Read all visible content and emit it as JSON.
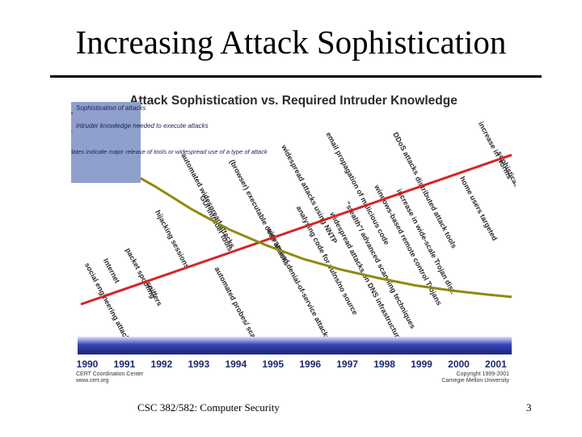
{
  "slide": {
    "title": "Increasing Attack Sophistication",
    "footer_course": "CSC 382/582: Computer Security",
    "page_number": "3"
  },
  "colors": {
    "sophistication_line": "#d42525",
    "knowledge_line": "#8f8a0e",
    "timeline_bar": "#3845b8",
    "legend_bg": "#8fa0cc",
    "legend_text": "#1a1f5c"
  },
  "chart_data": {
    "type": "line",
    "title": "Attack Sophistication vs. Required Intruder Knowledge",
    "xlabel": "",
    "ylabel": "",
    "xlim": [
      1990,
      2001.6
    ],
    "ylim": [
      0,
      10
    ],
    "x_ticks": [
      "1990",
      "1991",
      "1992",
      "1993",
      "1994",
      "1995",
      "1996",
      "1997",
      "1998",
      "1999",
      "2000",
      "2001"
    ],
    "legend": {
      "placement": "top-left",
      "entries": [
        "Sophistication of attacks",
        "Intruder knowledge needed to execute attacks"
      ],
      "note": "dates indicate major release of tools or widespread use of a type of attack"
    },
    "series": [
      {
        "name": "Sophistication of attacks",
        "color": "#d42525",
        "x": [
          1990,
          2001.6
        ],
        "y": [
          1.0,
          8.1
        ]
      },
      {
        "name": "Intruder knowledge needed to execute attacks",
        "color": "#8f8a0e",
        "x": [
          1990,
          1991,
          1992,
          1993,
          1994,
          1995,
          1996,
          1997,
          1998,
          1999,
          2000,
          2001,
          2001.6
        ],
        "y": [
          8.6,
          7.6,
          6.6,
          5.5,
          4.55,
          3.8,
          3.15,
          2.65,
          2.25,
          1.9,
          1.65,
          1.45,
          1.35
        ]
      }
    ],
    "annotations": [
      {
        "text": "social engineering attacks",
        "x": 1990.1,
        "y": 2.9,
        "angle": 62
      },
      {
        "text": "Internet",
        "x": 1990.6,
        "y": 3.1,
        "angle": 62
      },
      {
        "text": "packet spoofing",
        "x": 1991.2,
        "y": 3.6,
        "angle": 62
      },
      {
        "text": "sniffers",
        "x": 1991.75,
        "y": 2.0,
        "angle": 62
      },
      {
        "text": "hijacking sessions",
        "x": 1992.0,
        "y": 5.4,
        "angle": 62
      },
      {
        "text": "GUI intruder tools",
        "x": 1993.2,
        "y": 6.1,
        "angle": 62
      },
      {
        "text": "automated probes/ scans",
        "x": 1993.6,
        "y": 2.7,
        "angle": 62
      },
      {
        "text": "automated widespread attacks",
        "x": 1992.7,
        "y": 8.1,
        "angle": 62
      },
      {
        "text": "(browser) executable code attacks",
        "x": 1994.0,
        "y": 7.8,
        "angle": 62
      },
      {
        "text": "widespread attacks using NNTP",
        "x": 1995.4,
        "y": 8.5,
        "angle": 62
      },
      {
        "text": "email propagation of malicious code",
        "x": 1996.6,
        "y": 9.1,
        "angle": 62
      },
      {
        "text": "DDoS attacks",
        "x": 1998.4,
        "y": 9.1,
        "angle": 62
      },
      {
        "text": "increase in worms",
        "x": 2000.7,
        "y": 9.6,
        "angle": 62
      },
      {
        "text": "sophisticated command and control",
        "x": 2001.2,
        "y": 8.2,
        "angle": 62
      },
      {
        "text": "home users targeted",
        "x": 2000.2,
        "y": 7.0,
        "angle": 62
      },
      {
        "text": "distributed attack tools",
        "x": 1999.0,
        "y": 7.0,
        "angle": 62
      },
      {
        "text": "increase in wide-scale Trojan dist.",
        "x": 1998.5,
        "y": 6.4,
        "angle": 62
      },
      {
        "text": "windows-based remote control Trojans",
        "x": 1997.9,
        "y": 6.6,
        "angle": 62
      },
      {
        "text": "\"stealth\"/ advanced scanning techniques",
        "x": 1997.1,
        "y": 5.8,
        "angle": 62
      },
      {
        "text": "widespread attacks on DNS infrastructure",
        "x": 1996.7,
        "y": 5.3,
        "angle": 62
      },
      {
        "text": "analysing code for vulns/no source",
        "x": 1995.8,
        "y": 5.6,
        "angle": 62
      },
      {
        "text": "widespread denial-of-service attacks",
        "x": 1995.0,
        "y": 4.6,
        "angle": 62
      }
    ],
    "source_left": [
      "CERT Coordination Center",
      "www.cert.org"
    ],
    "source_right": [
      "Copyright 1999-2001",
      "Carnegie Mellon University"
    ]
  }
}
